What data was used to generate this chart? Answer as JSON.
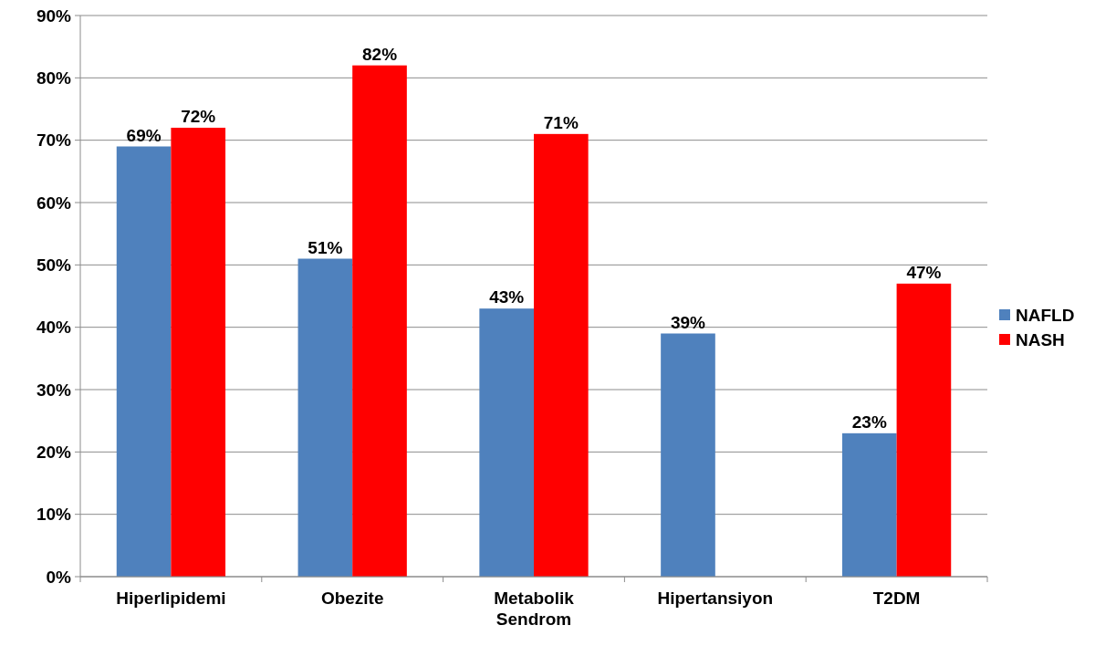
{
  "chart_data": {
    "type": "bar",
    "categories": [
      "Hiperlipidemi",
      "Obezite",
      "Metabolik Sendrom",
      "Hipertansiyon",
      "T2DM"
    ],
    "series": [
      {
        "name": "NAFLD",
        "color": "#4f81bd",
        "values": [
          69,
          51,
          43,
          39,
          23
        ],
        "value_labels": [
          "69%",
          "51%",
          "43%",
          "39%",
          "23%"
        ]
      },
      {
        "name": "NASH",
        "color": "#ff0000",
        "values": [
          72,
          82,
          71,
          null,
          47
        ],
        "value_labels": [
          "72%",
          "82%",
          "71%",
          null,
          "47%"
        ]
      }
    ],
    "ylim": [
      0,
      90
    ],
    "yticks": [
      {
        "value": 0,
        "label": "0%"
      },
      {
        "value": 10,
        "label": "10%"
      },
      {
        "value": 20,
        "label": "20%"
      },
      {
        "value": 30,
        "label": "30%"
      },
      {
        "value": 40,
        "label": "40%"
      },
      {
        "value": 50,
        "label": "50%"
      },
      {
        "value": 60,
        "label": "60%"
      },
      {
        "value": 70,
        "label": "70%"
      },
      {
        "value": 80,
        "label": "80%"
      },
      {
        "value": 90,
        "label": "90%"
      }
    ],
    "grid": "y",
    "legend": "right"
  }
}
